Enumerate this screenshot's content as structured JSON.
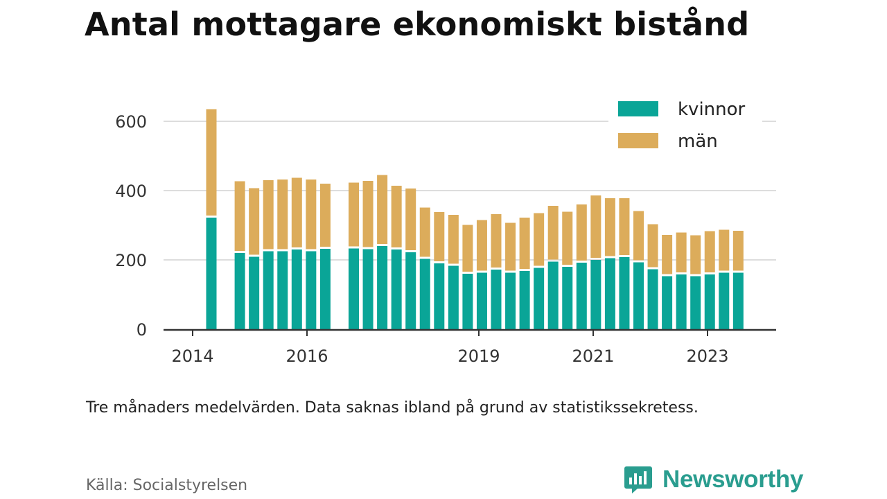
{
  "chart_data": {
    "type": "bar",
    "stacked": true,
    "title": "Antal mottagare ekonomiskt bistånd",
    "caption": "Tre månaders medelvärden. Data saknas ibland på grund av statistikssekretess.",
    "source": "Källa: Socialstyrelsen",
    "brand": "Newsworthy",
    "ylim": [
      0,
      640
    ],
    "y_ticks": [
      "0",
      "200",
      "400",
      "600"
    ],
    "grid": true,
    "legend_position": "top-right",
    "x_tick_labels": [
      "2014",
      "2016",
      "2019",
      "2021",
      "2023"
    ],
    "series": [
      {
        "name": "kvinnor",
        "color": "#0aa597",
        "values": [
          322,
          null,
          220,
          209,
          225,
          225,
          230,
          225,
          232,
          null,
          233,
          231,
          240,
          230,
          222,
          203,
          190,
          183,
          160,
          163,
          172,
          163,
          168,
          177,
          195,
          180,
          192,
          200,
          205,
          208,
          193,
          173,
          153,
          158,
          153,
          158,
          163,
          163
        ]
      },
      {
        "name": "män",
        "color": "#dcac5b",
        "values": [
          313,
          null,
          207,
          198,
          205,
          207,
          207,
          207,
          188,
          null,
          190,
          197,
          205,
          184,
          184,
          148,
          148,
          147,
          141,
          152,
          160,
          144,
          154,
          158,
          161,
          159,
          168,
          186,
          173,
          170,
          148,
          130,
          119,
          121,
          118,
          125,
          124,
          121
        ]
      }
    ]
  },
  "colors": {
    "title": "#111111",
    "brand": "#2a9d8f",
    "grid": "#dddddd",
    "axis": "#333333"
  },
  "icons": {
    "brand_logo": "newsworthy-logo-icon"
  }
}
